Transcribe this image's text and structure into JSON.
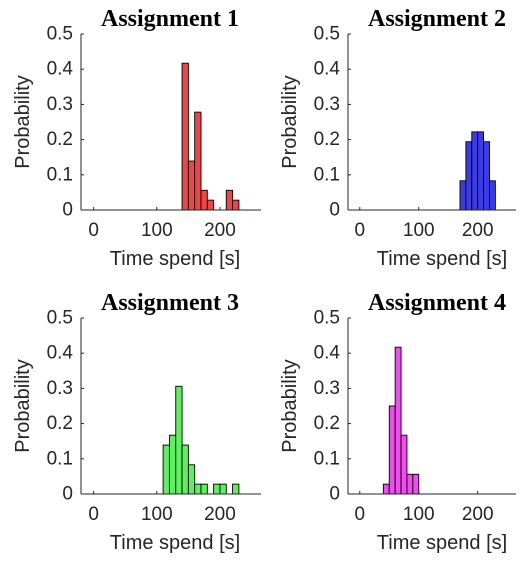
{
  "chart_data": [
    {
      "type": "bar",
      "title": "Assignment 1",
      "xlabel": "Time spend [s]",
      "ylabel": "Probability",
      "xlim": [
        -20,
        265
      ],
      "ylim": [
        0,
        0.5
      ],
      "xticks": [
        0,
        100,
        200
      ],
      "yticks": [
        0,
        0.1,
        0.2,
        0.3,
        0.4,
        0.5
      ],
      "bin_width": 10,
      "color": "#f04545",
      "bins": [
        {
          "x": 140,
          "value": 0.417
        },
        {
          "x": 150,
          "value": 0.139
        },
        {
          "x": 160,
          "value": 0.278
        },
        {
          "x": 170,
          "value": 0.056
        },
        {
          "x": 180,
          "value": 0.028
        },
        {
          "x": 210,
          "value": 0.056
        },
        {
          "x": 220,
          "value": 0.028
        }
      ]
    },
    {
      "type": "bar",
      "title": "Assignment 2",
      "xlabel": "Time spend [s]",
      "ylabel": "Probability",
      "xlim": [
        -20,
        265
      ],
      "ylim": [
        0,
        0.5
      ],
      "xticks": [
        0,
        100,
        200
      ],
      "yticks": [
        0,
        0.1,
        0.2,
        0.3,
        0.4,
        0.5
      ],
      "bin_width": 10,
      "color": "#3c3ce6",
      "bins": [
        {
          "x": 170,
          "value": 0.083
        },
        {
          "x": 180,
          "value": 0.194
        },
        {
          "x": 190,
          "value": 0.222
        },
        {
          "x": 200,
          "value": 0.222
        },
        {
          "x": 210,
          "value": 0.194
        },
        {
          "x": 220,
          "value": 0.083
        }
      ]
    },
    {
      "type": "bar",
      "title": "Assignment 3",
      "xlabel": "Time spend [s]",
      "ylabel": "Probability",
      "xlim": [
        -20,
        265
      ],
      "ylim": [
        0,
        0.5
      ],
      "xticks": [
        0,
        100,
        200
      ],
      "yticks": [
        0,
        0.1,
        0.2,
        0.3,
        0.4,
        0.5
      ],
      "bin_width": 10,
      "color": "#5ef05e",
      "bins": [
        {
          "x": 110,
          "value": 0.139
        },
        {
          "x": 120,
          "value": 0.167
        },
        {
          "x": 130,
          "value": 0.306
        },
        {
          "x": 140,
          "value": 0.139
        },
        {
          "x": 150,
          "value": 0.083
        },
        {
          "x": 160,
          "value": 0.028
        },
        {
          "x": 170,
          "value": 0.028
        },
        {
          "x": 190,
          "value": 0.028
        },
        {
          "x": 200,
          "value": 0.028
        },
        {
          "x": 220,
          "value": 0.028
        }
      ]
    },
    {
      "type": "bar",
      "title": "Assignment 4",
      "xlabel": "Time spend [s]",
      "ylabel": "Probability",
      "xlim": [
        -20,
        265
      ],
      "ylim": [
        0,
        0.5
      ],
      "xticks": [
        0,
        100,
        200
      ],
      "yticks": [
        0,
        0.1,
        0.2,
        0.3,
        0.4,
        0.5
      ],
      "bin_width": 10,
      "color": "#f04cf0",
      "bins": [
        {
          "x": 40,
          "value": 0.028
        },
        {
          "x": 50,
          "value": 0.25
        },
        {
          "x": 60,
          "value": 0.417
        },
        {
          "x": 70,
          "value": 0.167
        },
        {
          "x": 80,
          "value": 0.056
        },
        {
          "x": 90,
          "value": 0.056
        }
      ]
    }
  ]
}
